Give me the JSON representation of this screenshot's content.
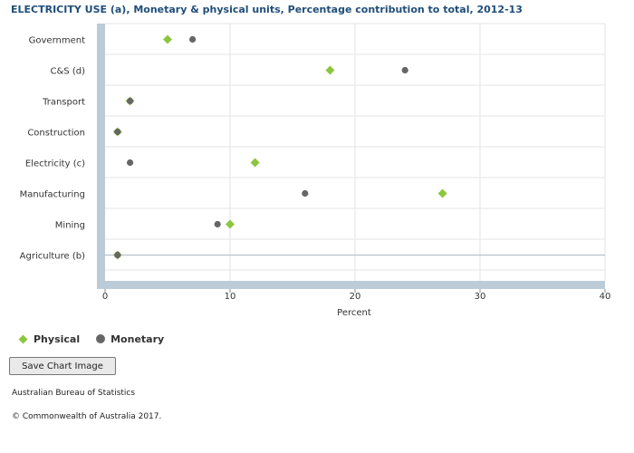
{
  "chart_data": {
    "type": "scatter",
    "title": "ELECTRICITY USE (a), Monetary & physical units, Percentage contribution to total, 2012-13",
    "xlabel": "Percent",
    "ylabel": "",
    "xlim": [
      0,
      40
    ],
    "x_ticks": [
      "0",
      "10",
      "20",
      "30",
      "40"
    ],
    "categories": [
      "Government",
      "C&S (d)",
      "Transport",
      "Construction",
      "Electricity (c)",
      "Manufacturing",
      "Mining",
      "Agriculture (b)"
    ],
    "series": [
      {
        "name": "Physical",
        "marker": "diamond",
        "color": "#8cc63f",
        "values": [
          5,
          18,
          2,
          1,
          12,
          27,
          10,
          1
        ]
      },
      {
        "name": "Monetary",
        "marker": "circle",
        "color": "#666666",
        "values": [
          7,
          24,
          2,
          1,
          2,
          16,
          9,
          1
        ]
      }
    ],
    "grid": true,
    "legend_position": "bottom-left"
  },
  "buttons": {
    "save_chart_image": "Save Chart Image"
  },
  "footer": {
    "source": "Australian Bureau of Statistics",
    "copyright": "© Commonwealth of Australia 2017."
  }
}
